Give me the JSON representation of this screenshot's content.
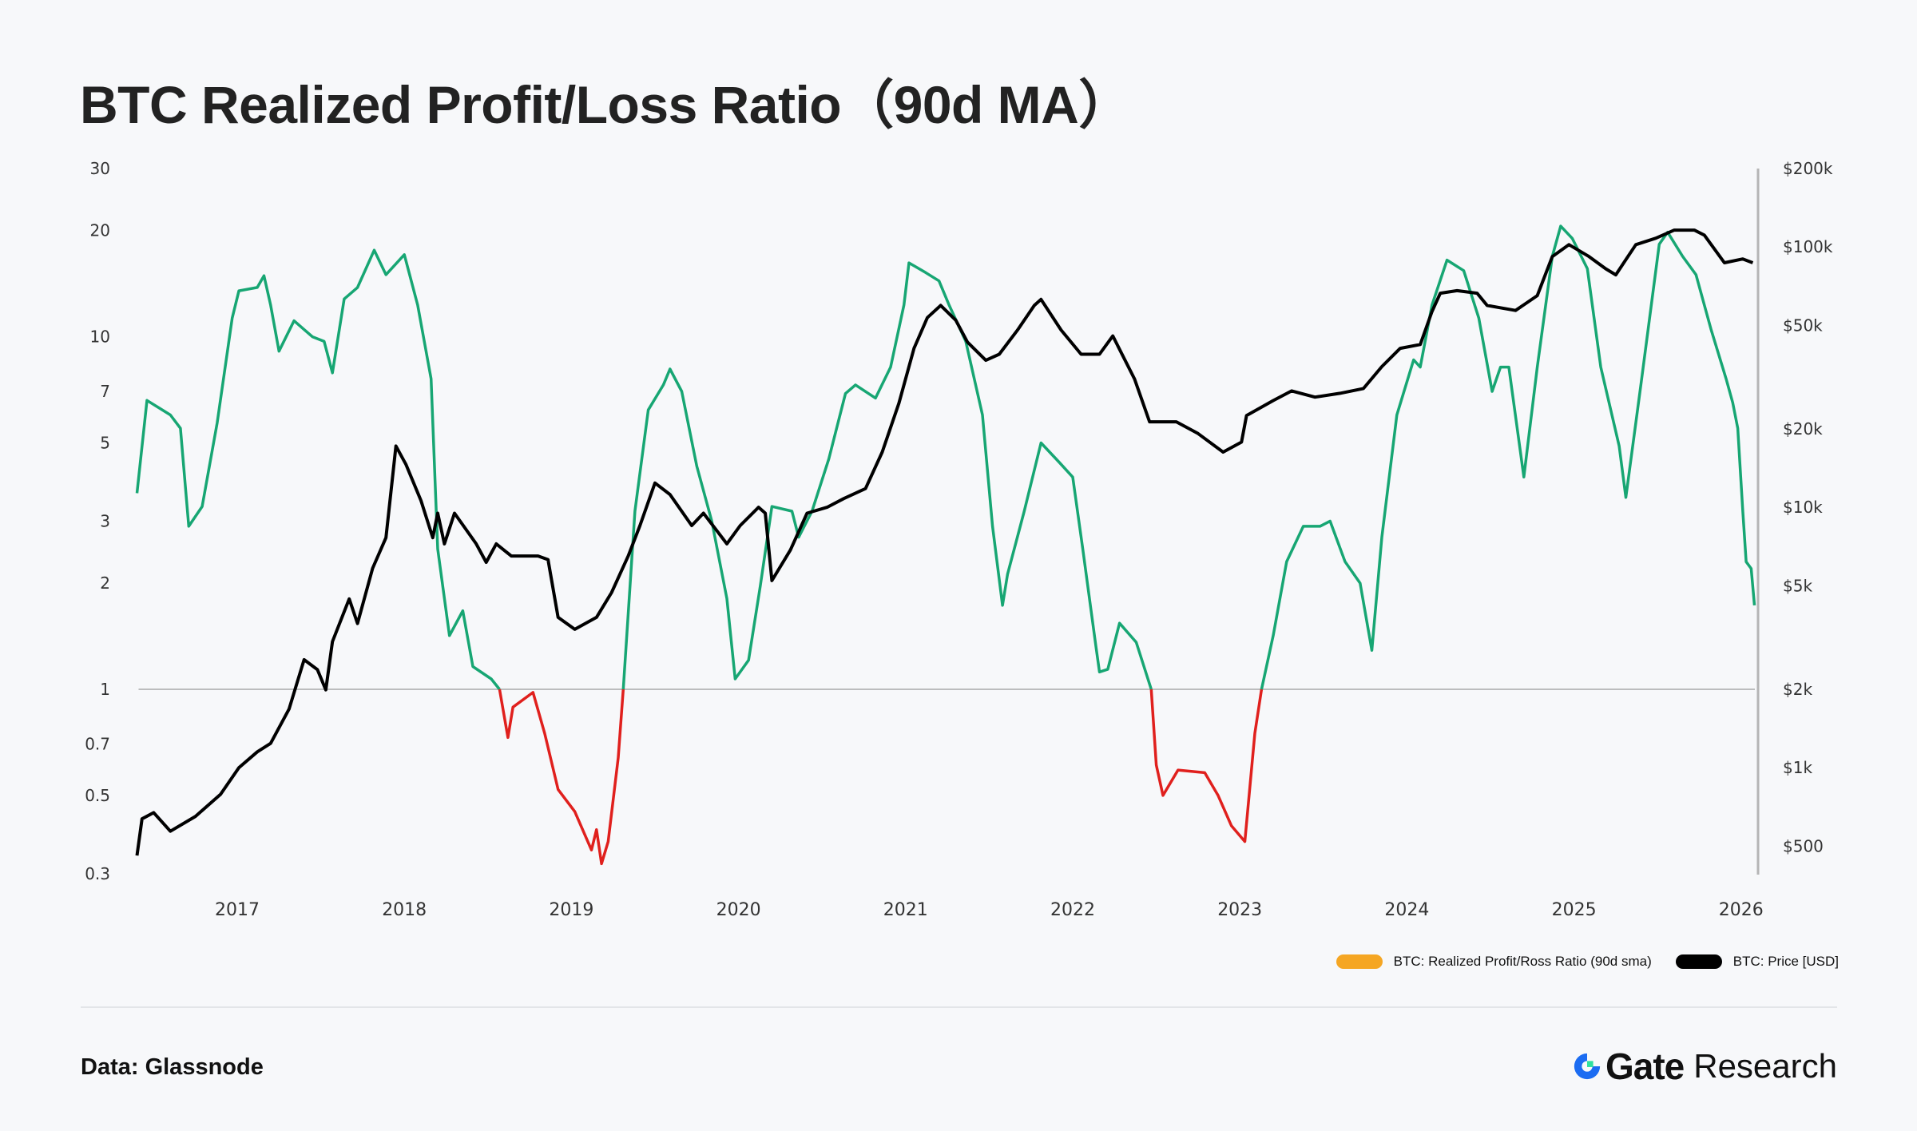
{
  "title": "BTC Realized Profit/Loss Ratio（90d MA）",
  "source": "Data: Glassnode",
  "brand": {
    "name": "Gate",
    "suffix": "Research"
  },
  "legend": [
    {
      "label": "BTC: Realized Profit/Ross Ratio (90d sma)",
      "color": "#f5a623"
    },
    {
      "label": "BTC: Price [USD]",
      "color": "#000000"
    }
  ],
  "colors": {
    "ratio_profit": "#17a673",
    "ratio_loss": "#e0201d",
    "price": "#000000",
    "reference_line": "#a9a9a9"
  },
  "chart_data": {
    "type": "line",
    "x_type": "year",
    "xlim": [
      2016.4,
      2026.1
    ],
    "x_ticks": [
      "2017",
      "2018",
      "2019",
      "2020",
      "2021",
      "2022",
      "2023",
      "2024",
      "2025",
      "2026"
    ],
    "left_axis": {
      "scale": "log",
      "ylim": [
        0.3,
        30
      ],
      "ticks": [
        {
          "v": 30,
          "label": "30"
        },
        {
          "v": 20,
          "label": "20"
        },
        {
          "v": 10,
          "label": "10"
        },
        {
          "v": 7,
          "label": "7"
        },
        {
          "v": 5,
          "label": "5"
        },
        {
          "v": 3,
          "label": "3"
        },
        {
          "v": 2,
          "label": "2"
        },
        {
          "v": 1,
          "label": "1"
        },
        {
          "v": 0.7,
          "label": "0.7"
        },
        {
          "v": 0.5,
          "label": "0.5"
        },
        {
          "v": 0.3,
          "label": "0.3"
        }
      ]
    },
    "right_axis": {
      "scale": "log",
      "ylim": [
        350,
        200000
      ],
      "ticks": [
        {
          "v": 200000,
          "label": "$200k"
        },
        {
          "v": 100000,
          "label": "$100k"
        },
        {
          "v": 50000,
          "label": "$50k"
        },
        {
          "v": 20000,
          "label": "$20k"
        },
        {
          "v": 10000,
          "label": "$10k"
        },
        {
          "v": 5000,
          "label": "$5k"
        },
        {
          "v": 2000,
          "label": "$2k"
        },
        {
          "v": 1000,
          "label": "$1k"
        },
        {
          "v": 500,
          "label": "$500"
        }
      ]
    },
    "reference_line": 1,
    "grid": false,
    "legend_position": "bottom-right",
    "series": [
      {
        "name": "BTC: Realized Profit/Ross Ratio (90d sma)",
        "axis": "left",
        "threshold_coloring": {
          "above": "#17a673",
          "below": "#e0201d",
          "at": 1
        },
        "x": [
          2016.4,
          2016.46,
          2016.6,
          2016.66,
          2016.71,
          2016.79,
          2016.88,
          2016.97,
          2017.01,
          2017.12,
          2017.16,
          2017.2,
          2017.25,
          2017.34,
          2017.45,
          2017.52,
          2017.57,
          2017.64,
          2017.72,
          2017.82,
          2017.89,
          2018.0,
          2018.08,
          2018.16,
          2018.2,
          2018.27,
          2018.35,
          2018.41,
          2018.52,
          2018.57,
          2018.62,
          2018.65,
          2018.77,
          2018.84,
          2018.92,
          2019.02,
          2019.12,
          2019.15,
          2019.18,
          2019.22,
          2019.28,
          2019.31,
          2019.38,
          2019.46,
          2019.55,
          2019.59,
          2019.66,
          2019.75,
          2019.84,
          2019.93,
          2019.98,
          2020.06,
          2020.13,
          2020.2,
          2020.32,
          2020.36,
          2020.44,
          2020.54,
          2020.64,
          2020.7,
          2020.82,
          2020.91,
          2020.99,
          2021.02,
          2021.12,
          2021.2,
          2021.26,
          2021.36,
          2021.46,
          2021.52,
          2021.58,
          2021.61,
          2021.71,
          2021.81,
          2021.92,
          2022.0,
          2022.06,
          2022.14,
          2022.16,
          2022.21,
          2022.28,
          2022.38,
          2022.47,
          2022.5,
          2022.54,
          2022.63,
          2022.79,
          2022.87,
          2022.95,
          2023.03,
          2023.09,
          2023.13,
          2023.2,
          2023.28,
          2023.38,
          2023.48,
          2023.54,
          2023.63,
          2023.72,
          2023.79,
          2023.85,
          2023.94,
          2024.04,
          2024.08,
          2024.15,
          2024.24,
          2024.34,
          2024.43,
          2024.51,
          2024.56,
          2024.61,
          2024.7,
          2024.78,
          2024.87,
          2024.92,
          2024.99,
          2025.08,
          2025.16,
          2025.27,
          2025.31,
          2025.4,
          2025.51,
          2025.56,
          2025.65,
          2025.73,
          2025.82,
          2025.91,
          2025.95,
          2025.98,
          2026.01,
          2026.03,
          2026.06,
          2026.08
        ],
        "y": [
          3.6,
          6.6,
          6.0,
          5.5,
          2.9,
          3.3,
          5.7,
          11.3,
          13.5,
          13.8,
          14.9,
          12.3,
          9.1,
          11.1,
          10.0,
          9.7,
          7.9,
          12.8,
          13.8,
          17.6,
          15.0,
          17.1,
          12.3,
          7.6,
          2.5,
          1.42,
          1.67,
          1.16,
          1.07,
          1.0,
          0.73,
          0.89,
          0.98,
          0.75,
          0.52,
          0.45,
          0.35,
          0.4,
          0.32,
          0.37,
          0.64,
          1.0,
          3.2,
          6.2,
          7.3,
          8.1,
          7.0,
          4.3,
          3.0,
          1.81,
          1.07,
          1.21,
          1.96,
          3.3,
          3.2,
          2.7,
          3.2,
          4.5,
          6.9,
          7.3,
          6.7,
          8.2,
          12.3,
          16.2,
          15.2,
          14.4,
          12.3,
          9.7,
          6.0,
          2.9,
          1.73,
          2.12,
          3.2,
          5.0,
          4.4,
          4.0,
          2.5,
          1.31,
          1.12,
          1.14,
          1.54,
          1.36,
          1.0,
          0.61,
          0.5,
          0.59,
          0.58,
          0.5,
          0.41,
          0.37,
          0.75,
          1.0,
          1.42,
          2.3,
          2.9,
          2.9,
          3.0,
          2.3,
          2.0,
          1.29,
          2.7,
          6.0,
          8.6,
          8.2,
          12.3,
          16.5,
          15.4,
          11.3,
          7.0,
          8.2,
          8.2,
          4.0,
          8.2,
          16.9,
          20.6,
          19.0,
          15.6,
          8.2,
          4.9,
          3.5,
          7.3,
          18.3,
          19.8,
          16.9,
          15.0,
          10.5,
          7.6,
          6.5,
          5.5,
          3.2,
          2.3,
          2.2,
          1.73
        ]
      },
      {
        "name": "BTC: Price [USD]",
        "axis": "right",
        "x": [
          2016.4,
          2016.43,
          2016.5,
          2016.6,
          2016.75,
          2016.9,
          2017.01,
          2017.12,
          2017.2,
          2017.31,
          2017.4,
          2017.48,
          2017.53,
          2017.57,
          2017.67,
          2017.72,
          2017.81,
          2017.89,
          2017.95,
          2018.01,
          2018.1,
          2018.17,
          2018.2,
          2018.24,
          2018.3,
          2018.43,
          2018.49,
          2018.55,
          2018.64,
          2018.8,
          2018.86,
          2018.92,
          2019.02,
          2019.15,
          2019.24,
          2019.34,
          2019.41,
          2019.5,
          2019.59,
          2019.72,
          2019.79,
          2019.93,
          2020.01,
          2020.12,
          2020.16,
          2020.2,
          2020.31,
          2020.41,
          2020.53,
          2020.63,
          2020.76,
          2020.86,
          2020.96,
          2021.05,
          2021.13,
          2021.21,
          2021.3,
          2021.37,
          2021.48,
          2021.56,
          2021.67,
          2021.77,
          2021.81,
          2021.93,
          2022.05,
          2022.16,
          2022.24,
          2022.37,
          2022.46,
          2022.62,
          2022.75,
          2022.9,
          2023.01,
          2023.04,
          2023.2,
          2023.31,
          2023.45,
          2023.6,
          2023.74,
          2023.85,
          2023.96,
          2024.08,
          2024.15,
          2024.2,
          2024.3,
          2024.42,
          2024.48,
          2024.65,
          2024.78,
          2024.87,
          2024.97,
          2025.09,
          2025.19,
          2025.25,
          2025.37,
          2025.49,
          2025.6,
          2025.72,
          2025.78,
          2025.9,
          2026.01,
          2026.07
        ],
        "y": [
          460,
          636,
          672,
          570,
          650,
          790,
          1000,
          1150,
          1240,
          1680,
          2600,
          2380,
          1990,
          3050,
          4450,
          3580,
          5830,
          7640,
          17200,
          14600,
          10600,
          7640,
          9490,
          7240,
          9490,
          7240,
          6150,
          7240,
          6500,
          6500,
          6300,
          3780,
          3400,
          3780,
          4700,
          6500,
          8510,
          12400,
          11200,
          8510,
          9490,
          7240,
          8510,
          10000,
          9490,
          5230,
          6850,
          9490,
          10000,
          10800,
          11800,
          16300,
          25100,
          40800,
          53500,
          59600,
          52300,
          43100,
          36700,
          38700,
          48000,
          59600,
          62900,
          48000,
          38700,
          38700,
          45500,
          31100,
          21300,
          21300,
          19200,
          16300,
          17800,
          22500,
          25700,
          28000,
          26500,
          27400,
          28600,
          34700,
          40800,
          42200,
          56500,
          66400,
          67900,
          66400,
          59600,
          57000,
          65000,
          91800,
          102000,
          91800,
          82400,
          78100,
          102000,
          108000,
          116000,
          116000,
          111000,
          86900,
          89900,
          86900
        ]
      }
    ]
  }
}
